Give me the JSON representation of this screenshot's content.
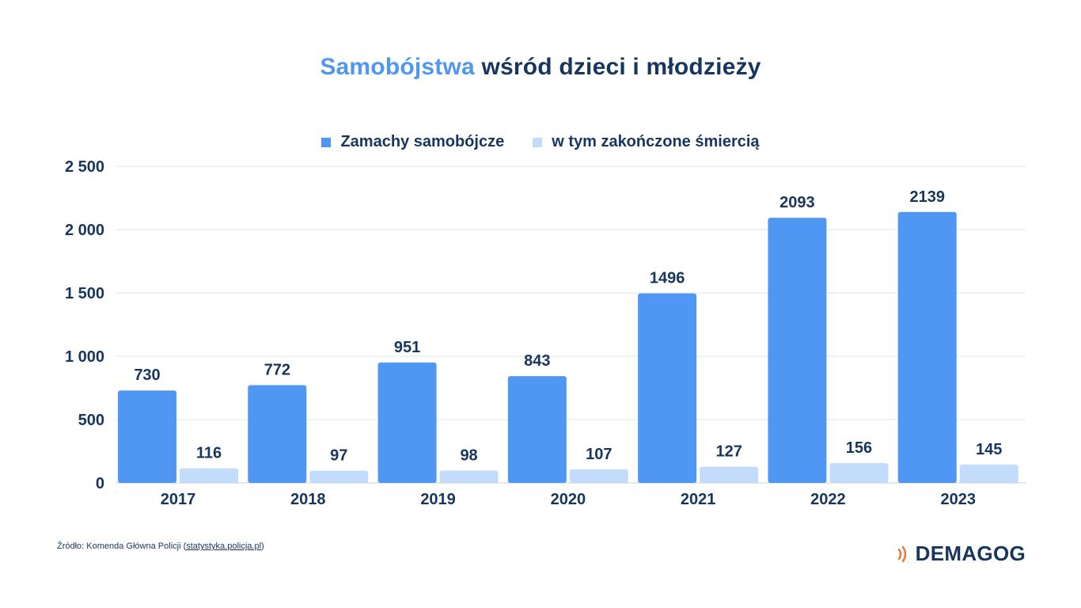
{
  "title": {
    "accent": "Samobójstwa",
    "rest": "wśród dzieci i młodzieży"
  },
  "colors": {
    "primary": "#4f97f3",
    "secondary": "#c3dcfb",
    "text": "#17355f",
    "brand_icon": "#f0722b"
  },
  "chart_data": {
    "type": "bar",
    "categories": [
      "2017",
      "2018",
      "2019",
      "2020",
      "2021",
      "2022",
      "2023"
    ],
    "series": [
      {
        "name": "Zamachy samobójcze",
        "values": [
          730,
          772,
          951,
          843,
          1496,
          2093,
          2139
        ]
      },
      {
        "name": "w tym zakończone śmiercią",
        "values": [
          116,
          97,
          98,
          107,
          127,
          156,
          145
        ]
      }
    ],
    "ylim": [
      0,
      2500
    ],
    "yticks": [
      0,
      500,
      1000,
      1500,
      2000,
      2500
    ],
    "ytick_labels": [
      "0",
      "500",
      "1 000",
      "1 500",
      "2 000",
      "2 500"
    ],
    "grid": true,
    "legend_position": "top-center"
  },
  "source": {
    "prefix": "Źródło: Komenda Główna Policji (",
    "link": "statystyka.policja.pl",
    "suffix": ")"
  },
  "brand": {
    "name": "DEMAGOG",
    "icon": "sound-waves-icon"
  }
}
